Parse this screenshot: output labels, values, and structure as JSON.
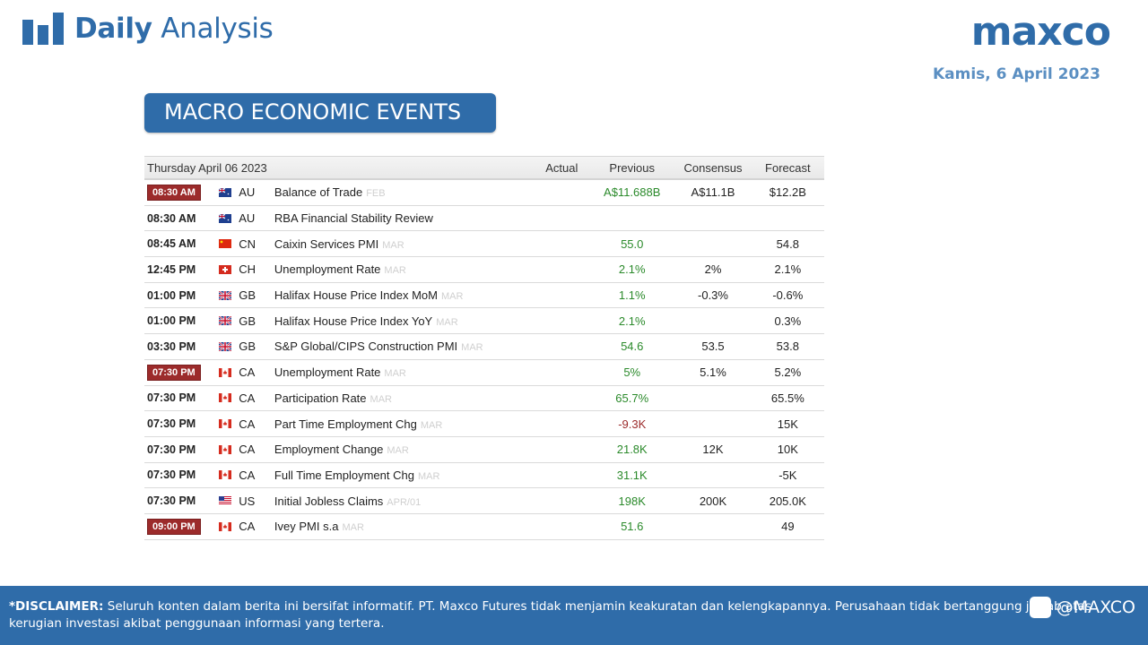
{
  "header": {
    "title_bold": "Daily",
    "title_light": "Analysis",
    "logo": "maxco",
    "date": "Kamis, 6 April 2023",
    "brand_color": "#2f6ca9"
  },
  "section_title": "MACRO ECONOMIC EVENTS",
  "table": {
    "date": "Thursday April 06 2023",
    "columns": {
      "actual": "Actual",
      "previous": "Previous",
      "consensus": "Consensus",
      "forecast": "Forecast"
    },
    "rows": [
      {
        "time": "08:30 AM",
        "highlight": true,
        "flag": "au",
        "country": "AU",
        "event": "Balance of Trade",
        "period": "FEB",
        "actual": "",
        "previous": "A$11.688B",
        "previous_color": "pos",
        "consensus": "A$11.1B",
        "forecast": "$12.2B"
      },
      {
        "time": "08:30 AM",
        "highlight": false,
        "flag": "au",
        "country": "AU",
        "event": "RBA Financial Stability Review",
        "period": "",
        "actual": "",
        "previous": "",
        "previous_color": "",
        "consensus": "",
        "forecast": ""
      },
      {
        "time": "08:45 AM",
        "highlight": false,
        "flag": "cn",
        "country": "CN",
        "event": "Caixin Services PMI",
        "period": "MAR",
        "actual": "",
        "previous": "55.0",
        "previous_color": "pos",
        "consensus": "",
        "forecast": "54.8"
      },
      {
        "time": "12:45 PM",
        "highlight": false,
        "flag": "ch",
        "country": "CH",
        "event": "Unemployment Rate",
        "period": "MAR",
        "actual": "",
        "previous": "2.1%",
        "previous_color": "pos",
        "consensus": "2%",
        "forecast": "2.1%"
      },
      {
        "time": "01:00 PM",
        "highlight": false,
        "flag": "gb",
        "country": "GB",
        "event": "Halifax House Price Index MoM",
        "period": "MAR",
        "actual": "",
        "previous": "1.1%",
        "previous_color": "pos",
        "consensus": "-0.3%",
        "forecast": "-0.6%"
      },
      {
        "time": "01:00 PM",
        "highlight": false,
        "flag": "gb",
        "country": "GB",
        "event": "Halifax House Price Index YoY",
        "period": "MAR",
        "actual": "",
        "previous": "2.1%",
        "previous_color": "pos",
        "consensus": "",
        "forecast": "0.3%"
      },
      {
        "time": "03:30 PM",
        "highlight": false,
        "flag": "gb",
        "country": "GB",
        "event": "S&P Global/CIPS Construction PMI",
        "period": "MAR",
        "actual": "",
        "previous": "54.6",
        "previous_color": "pos",
        "consensus": "53.5",
        "forecast": "53.8"
      },
      {
        "time": "07:30 PM",
        "highlight": true,
        "flag": "ca",
        "country": "CA",
        "event": "Unemployment Rate",
        "period": "MAR",
        "actual": "",
        "previous": "5%",
        "previous_color": "pos",
        "consensus": "5.1%",
        "forecast": "5.2%"
      },
      {
        "time": "07:30 PM",
        "highlight": false,
        "flag": "ca",
        "country": "CA",
        "event": "Participation Rate",
        "period": "MAR",
        "actual": "",
        "previous": "65.7%",
        "previous_color": "pos",
        "consensus": "",
        "forecast": "65.5%"
      },
      {
        "time": "07:30 PM",
        "highlight": false,
        "flag": "ca",
        "country": "CA",
        "event": "Part Time Employment Chg",
        "period": "MAR",
        "actual": "",
        "previous": "-9.3K",
        "previous_color": "neg",
        "consensus": "",
        "forecast": "15K"
      },
      {
        "time": "07:30 PM",
        "highlight": false,
        "flag": "ca",
        "country": "CA",
        "event": "Employment Change",
        "period": "MAR",
        "actual": "",
        "previous": "21.8K",
        "previous_color": "pos",
        "consensus": "12K",
        "forecast": "10K"
      },
      {
        "time": "07:30 PM",
        "highlight": false,
        "flag": "ca",
        "country": "CA",
        "event": "Full Time Employment Chg",
        "period": "MAR",
        "actual": "",
        "previous": "31.1K",
        "previous_color": "pos",
        "consensus": "",
        "forecast": "-5K"
      },
      {
        "time": "07:30 PM",
        "highlight": false,
        "flag": "us",
        "country": "US",
        "event": "Initial Jobless Claims",
        "period": "APR/01",
        "actual": "",
        "previous": "198K",
        "previous_color": "pos",
        "consensus": "200K",
        "forecast": "205.0K"
      },
      {
        "time": "09:00 PM",
        "highlight": true,
        "flag": "ca",
        "country": "CA",
        "event": "Ivey PMI s.a",
        "period": "MAR",
        "actual": "",
        "previous": "51.6",
        "previous_color": "pos",
        "consensus": "",
        "forecast": "49"
      }
    ]
  },
  "footer": {
    "disclaimer_label": "*DISCLAIMER:",
    "disclaimer_text": " Seluruh konten dalam berita ini bersifat informatif. PT. Maxco Futures tidak menjamin keakuratan dan kelengkapannya. Perusahaan tidak bertanggung jawab atas kerugian investasi akibat penggunaan informasi yang tertera.",
    "social_handle": "@MAXCO",
    "social_icon": "social-icon"
  }
}
